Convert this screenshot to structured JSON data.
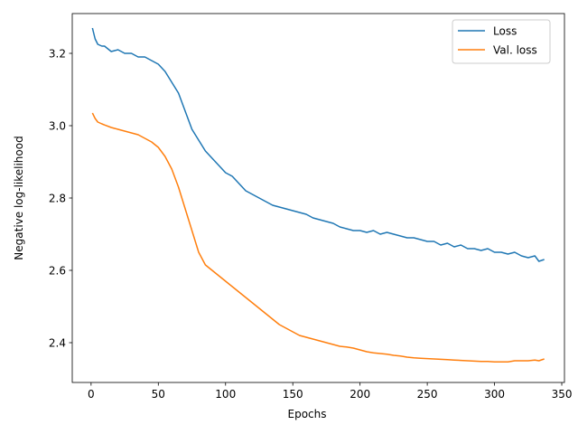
{
  "chart_data": {
    "type": "line",
    "xlabel": "Epochs",
    "ylabel": "Negative log-likelihood",
    "xlim": [
      -14,
      352
    ],
    "ylim": [
      2.29,
      3.31
    ],
    "xticks": [
      0,
      50,
      100,
      150,
      200,
      250,
      300,
      350
    ],
    "yticks": [
      2.4,
      2.6,
      2.8,
      3.0,
      3.2
    ],
    "ytick_labels": [
      "2.4",
      "2.6",
      "2.8",
      "3.0",
      "3.2"
    ],
    "grid": false,
    "legend_position": "top-right",
    "series": [
      {
        "name": "Loss",
        "color": "#1f77b4",
        "x": [
          1,
          3,
          5,
          8,
          10,
          15,
          20,
          25,
          30,
          35,
          40,
          45,
          50,
          55,
          60,
          65,
          70,
          75,
          80,
          85,
          90,
          95,
          100,
          105,
          110,
          115,
          120,
          125,
          130,
          135,
          140,
          145,
          150,
          155,
          160,
          165,
          170,
          175,
          180,
          185,
          190,
          195,
          200,
          205,
          210,
          215,
          220,
          225,
          230,
          235,
          240,
          245,
          250,
          255,
          260,
          265,
          270,
          275,
          280,
          285,
          290,
          295,
          300,
          305,
          310,
          315,
          320,
          325,
          330,
          333,
          337
        ],
        "y": [
          3.27,
          3.24,
          3.225,
          3.22,
          3.22,
          3.205,
          3.21,
          3.2,
          3.2,
          3.19,
          3.19,
          3.18,
          3.17,
          3.15,
          3.12,
          3.09,
          3.04,
          2.99,
          2.96,
          2.93,
          2.91,
          2.89,
          2.87,
          2.86,
          2.84,
          2.82,
          2.81,
          2.8,
          2.79,
          2.78,
          2.775,
          2.77,
          2.765,
          2.76,
          2.755,
          2.745,
          2.74,
          2.735,
          2.73,
          2.72,
          2.715,
          2.71,
          2.71,
          2.705,
          2.71,
          2.7,
          2.705,
          2.7,
          2.695,
          2.69,
          2.69,
          2.685,
          2.68,
          2.68,
          2.67,
          2.675,
          2.665,
          2.67,
          2.66,
          2.66,
          2.655,
          2.66,
          2.65,
          2.65,
          2.645,
          2.65,
          2.64,
          2.635,
          2.64,
          2.625,
          2.63
        ]
      },
      {
        "name": "Val. loss",
        "color": "#ff7f0e",
        "x": [
          1,
          3,
          5,
          8,
          10,
          15,
          20,
          25,
          30,
          35,
          40,
          45,
          50,
          55,
          60,
          65,
          70,
          75,
          80,
          85,
          90,
          95,
          100,
          105,
          110,
          115,
          120,
          125,
          130,
          135,
          140,
          145,
          150,
          155,
          160,
          165,
          170,
          175,
          180,
          185,
          190,
          195,
          200,
          205,
          210,
          215,
          220,
          225,
          230,
          235,
          240,
          245,
          250,
          255,
          260,
          265,
          270,
          275,
          280,
          285,
          290,
          295,
          300,
          305,
          310,
          315,
          320,
          325,
          330,
          333,
          337
        ],
        "y": [
          3.035,
          3.02,
          3.01,
          3.005,
          3.002,
          2.995,
          2.99,
          2.985,
          2.98,
          2.975,
          2.965,
          2.955,
          2.94,
          2.915,
          2.88,
          2.83,
          2.77,
          2.71,
          2.65,
          2.615,
          2.6,
          2.585,
          2.57,
          2.555,
          2.54,
          2.525,
          2.51,
          2.495,
          2.48,
          2.465,
          2.45,
          2.44,
          2.43,
          2.42,
          2.415,
          2.41,
          2.405,
          2.4,
          2.395,
          2.39,
          2.388,
          2.385,
          2.38,
          2.375,
          2.372,
          2.37,
          2.368,
          2.365,
          2.363,
          2.36,
          2.358,
          2.357,
          2.356,
          2.355,
          2.354,
          2.353,
          2.352,
          2.351,
          2.35,
          2.349,
          2.348,
          2.348,
          2.347,
          2.347,
          2.347,
          2.35,
          2.35,
          2.35,
          2.352,
          2.35,
          2.355
        ]
      }
    ]
  }
}
